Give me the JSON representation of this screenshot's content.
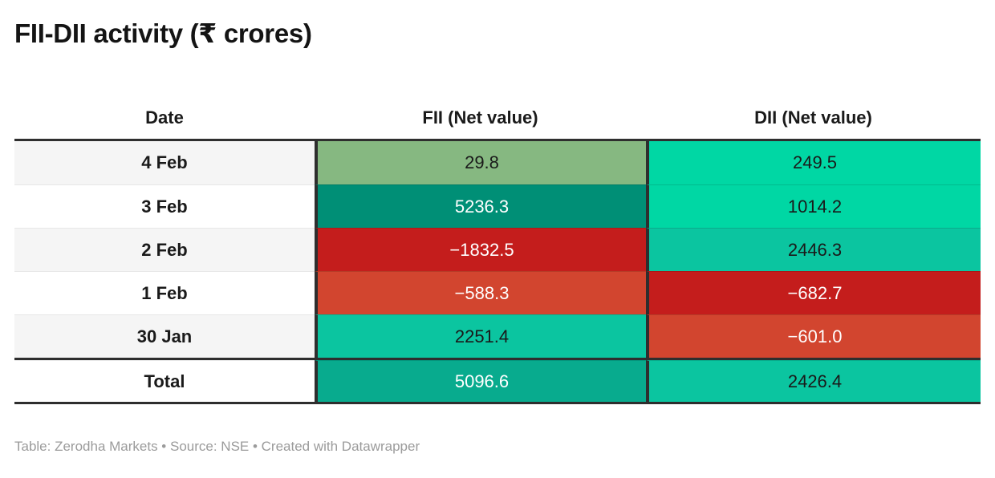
{
  "title": "FII-DII activity (₹ crores)",
  "footer": "Table: Zerodha Markets • Source: NSE • Created with Datawrapper",
  "colors": {
    "positive_light_green": "#86b881",
    "positive_teal_dark": "#008f76",
    "positive_mint_bright": "#00d7a4",
    "positive_mint_teal": "#0bc5a0",
    "total_teal": "#08ab8e",
    "negative_red": "#c41d1c",
    "negative_vermillion": "#d2452f",
    "border_dark": "#2e2e2e",
    "row_alt_gray": "#f5f5f5"
  },
  "table": {
    "columns": [
      "Date",
      "FII (Net value)",
      "DII (Net value)"
    ],
    "rows": [
      {
        "date": "4 Feb",
        "fii": "29.8",
        "fii_bg": "#86b881",
        "fii_fg": "#1a1a1a",
        "dii": "249.5",
        "dii_bg": "#00d7a4",
        "dii_fg": "#1a1a1a"
      },
      {
        "date": "3 Feb",
        "fii": "5236.3",
        "fii_bg": "#008f76",
        "fii_fg": "#ffffff",
        "dii": "1014.2",
        "dii_bg": "#00d7a4",
        "dii_fg": "#1a1a1a"
      },
      {
        "date": "2 Feb",
        "fii": "−1832.5",
        "fii_bg": "#c41d1c",
        "fii_fg": "#ffffff",
        "dii": "2446.3",
        "dii_bg": "#0bc5a0",
        "dii_fg": "#1a1a1a"
      },
      {
        "date": "1 Feb",
        "fii": "−588.3",
        "fii_bg": "#d2452f",
        "fii_fg": "#ffffff",
        "dii": "−682.7",
        "dii_bg": "#c41d1c",
        "dii_fg": "#ffffff"
      },
      {
        "date": "30 Jan",
        "fii": "2251.4",
        "fii_bg": "#0bc5a0",
        "fii_fg": "#1a1a1a",
        "dii": "−601.0",
        "dii_bg": "#d2452f",
        "dii_fg": "#ffffff"
      },
      {
        "date": "Total",
        "fii": "5096.6",
        "fii_bg": "#08ab8e",
        "fii_fg": "#ffffff",
        "dii": "2426.4",
        "dii_bg": "#0bc5a0",
        "dii_fg": "#1a1a1a"
      }
    ]
  },
  "chart_data": {
    "type": "table",
    "title": "FII-DII activity (₹ crores)",
    "columns": [
      "Date",
      "FII (Net value)",
      "DII (Net value)"
    ],
    "rows": [
      [
        "4 Feb",
        29.8,
        249.5
      ],
      [
        "3 Feb",
        5236.3,
        1014.2
      ],
      [
        "2 Feb",
        -1832.5,
        2446.3
      ],
      [
        "1 Feb",
        -588.3,
        -682.7
      ],
      [
        "30 Jan",
        2251.4,
        -601.0
      ],
      [
        "Total",
        5096.6,
        2426.4
      ]
    ],
    "layout_hints": "heatmap-colored table cells: greens for positive values, reds for negative values; bold total row separated by thick dark rules"
  }
}
